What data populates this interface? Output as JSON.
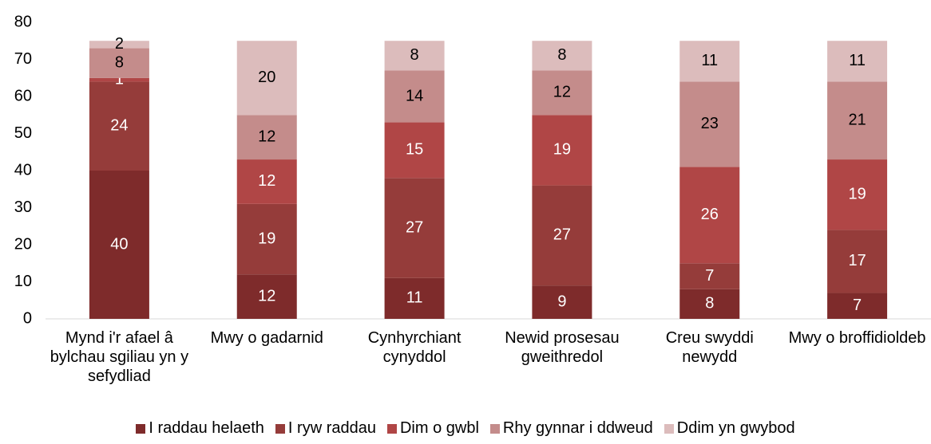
{
  "chart_data": {
    "type": "stacked_bar",
    "categories": [
      "Mynd i'r afael â bylchau sgiliau yn y sefydliad",
      "Mwy o gadarnid",
      "Cynhyrchiant cynyddol",
      "Newid prosesau gweithredol",
      "Creu swyddi newydd",
      "Mwy o broffidioldeb"
    ],
    "series": [
      {
        "name": "I raddau helaeth",
        "color": "#7e2b2b",
        "values": [
          40,
          12,
          11,
          9,
          8,
          7
        ]
      },
      {
        "name": "I ryw raddau",
        "color": "#953c3a",
        "values": [
          24,
          19,
          27,
          27,
          7,
          17
        ]
      },
      {
        "name": "Dim o gwbl",
        "color": "#b04646",
        "values": [
          1,
          12,
          15,
          19,
          26,
          19
        ]
      },
      {
        "name": "Rhy gynnar i ddweud",
        "color": "#c48c8b",
        "values": [
          8,
          12,
          14,
          12,
          23,
          21
        ]
      },
      {
        "name": "Ddim yn gwybod",
        "color": "#dcbcbc",
        "values": [
          2,
          20,
          8,
          8,
          11,
          11
        ]
      }
    ],
    "ylim": [
      0,
      80
    ],
    "yticks": [
      0,
      10,
      20,
      30,
      40,
      50,
      60,
      70,
      80
    ],
    "grid": false,
    "legend": "bottom"
  }
}
